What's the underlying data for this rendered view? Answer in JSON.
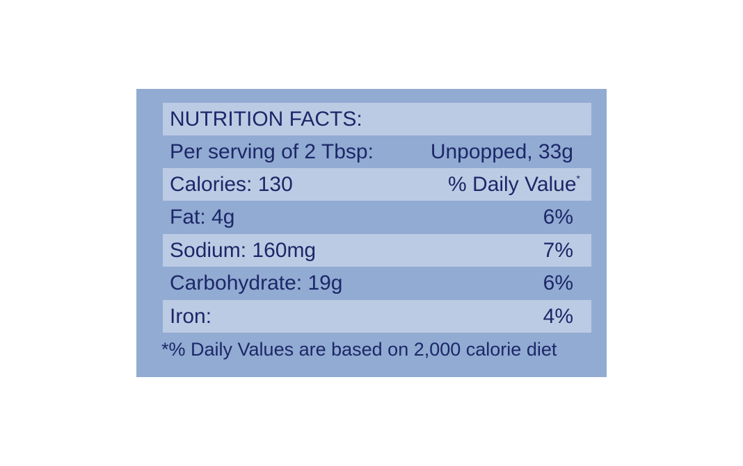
{
  "title": "NUTRITION FACTS:",
  "serving": {
    "label": "Per serving of 2 Tbsp:",
    "amount": "Unpopped, 33g"
  },
  "header": {
    "calories": "Calories: 130",
    "daily_value": "% Daily Value",
    "marker": "*"
  },
  "table": {
    "rows": [
      [
        "Fat: 4g",
        "6%"
      ],
      [
        "Sodium: 160mg",
        "7%"
      ],
      [
        "Carbohydrate: 19g",
        "6%"
      ],
      [
        "Iron:",
        "4%"
      ]
    ]
  },
  "footnote": "*% Daily Values are based on 2,000 calorie diet"
}
